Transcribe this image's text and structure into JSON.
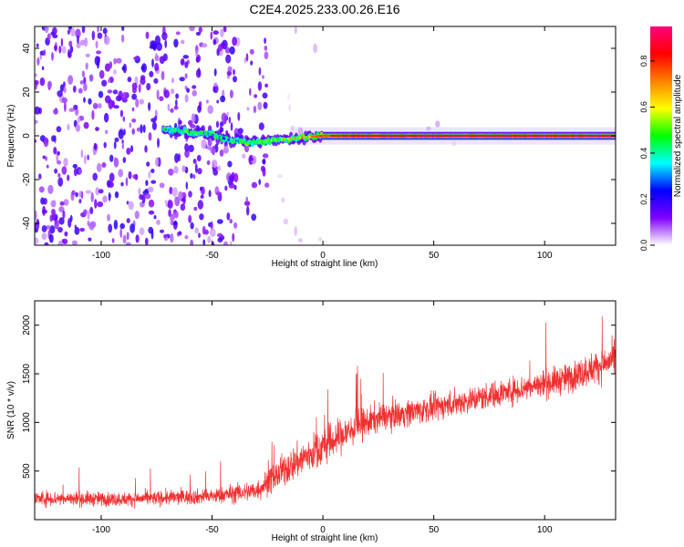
{
  "title": "C2E4.2025.233.00.26.E16",
  "chart_data": [
    {
      "type": "heatmap",
      "xlabel": "Height of straight line (km)",
      "ylabel": "Frequency (Hz)",
      "xlim": [
        -130,
        132
      ],
      "ylim": [
        -50,
        50
      ],
      "xticks": [
        -100,
        -50,
        0,
        50,
        100
      ],
      "yticks": [
        -40,
        -20,
        0,
        20,
        40
      ],
      "colorbar": {
        "label": "Normalized spectral amplitude",
        "ticks": [
          0.0,
          0.2,
          0.4,
          0.6,
          0.8
        ],
        "range": [
          0.0,
          0.95
        ],
        "colormap": [
          "#ffffff",
          "#7f00ff",
          "#0000ff",
          "#00ffff",
          "#00ff00",
          "#ffff00",
          "#ff8000",
          "#ff0000",
          "#ff0080"
        ]
      },
      "ridge": [
        {
          "x": -72,
          "y": 3,
          "v": 0.45
        },
        {
          "x": -62,
          "y": 2,
          "v": 0.5
        },
        {
          "x": -52,
          "y": 1,
          "v": 0.45
        },
        {
          "x": -42,
          "y": -2,
          "v": 0.4
        },
        {
          "x": -32,
          "y": -3,
          "v": 0.5
        },
        {
          "x": -22,
          "y": -2,
          "v": 0.6
        },
        {
          "x": -12,
          "y": -1,
          "v": 0.7
        },
        {
          "x": 0,
          "y": 0,
          "v": 0.8
        },
        {
          "x": 20,
          "y": 0,
          "v": 0.9
        },
        {
          "x": 60,
          "y": 0,
          "v": 0.92
        },
        {
          "x": 100,
          "y": 0,
          "v": 0.92
        },
        {
          "x": 132,
          "y": 0,
          "v": 0.92
        }
      ]
    },
    {
      "type": "line",
      "xlabel": "Height of straight line (km)",
      "ylabel": "SNR (10 * v/v)",
      "xlim": [
        -130,
        132
      ],
      "ylim": [
        0,
        2250
      ],
      "xticks": [
        -100,
        -50,
        0,
        50,
        100
      ],
      "yticks": [
        500,
        1000,
        1500,
        2000
      ],
      "color": "#f03030",
      "trend": [
        {
          "x": -130,
          "mean": 220,
          "spread": 100
        },
        {
          "x": -90,
          "mean": 210,
          "spread": 90
        },
        {
          "x": -50,
          "mean": 240,
          "spread": 100
        },
        {
          "x": -30,
          "mean": 300,
          "spread": 140
        },
        {
          "x": -15,
          "mean": 550,
          "spread": 220
        },
        {
          "x": 0,
          "mean": 750,
          "spread": 250
        },
        {
          "x": 15,
          "mean": 950,
          "spread": 220
        },
        {
          "x": 25,
          "mean": 1050,
          "spread": 180
        },
        {
          "x": 50,
          "mean": 1150,
          "spread": 170
        },
        {
          "x": 80,
          "mean": 1300,
          "spread": 170
        },
        {
          "x": 110,
          "mean": 1450,
          "spread": 190
        },
        {
          "x": 132,
          "mean": 1650,
          "spread": 220
        }
      ]
    }
  ]
}
